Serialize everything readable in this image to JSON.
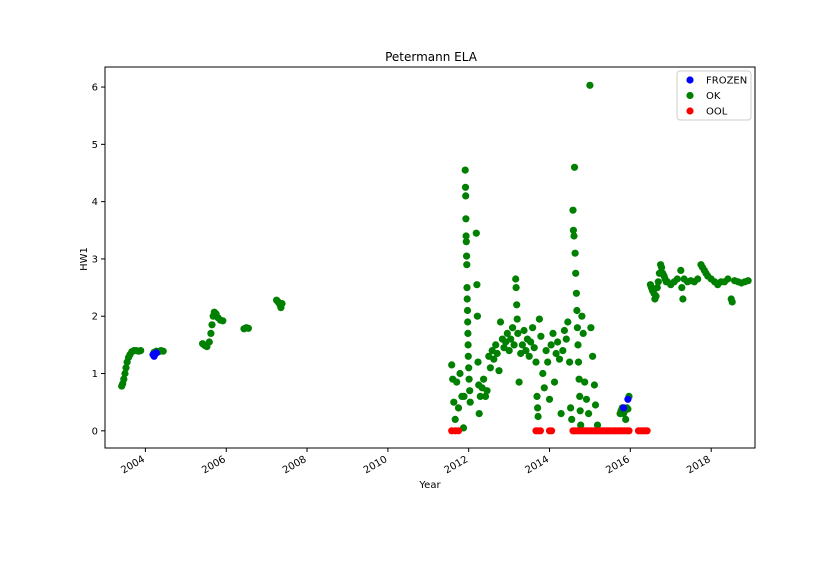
{
  "chart_data": {
    "type": "scatter",
    "title": "Petermann ELA",
    "xlabel": "Year",
    "ylabel": "HW1",
    "xlim": [
      "2003-01-01",
      "2019-02-01"
    ],
    "ylim": [
      -0.3,
      6.35
    ],
    "x_ticks": [
      "2004",
      "2006",
      "2008",
      "2010",
      "2012",
      "2014",
      "2016",
      "2018"
    ],
    "y_ticks": [
      "0",
      "1",
      "2",
      "3",
      "4",
      "5",
      "6"
    ],
    "grid": false,
    "legend_position": "top-right",
    "colors": {
      "FROZEN": "#0000ff",
      "OK": "#008000",
      "OOL": "#ff0000"
    },
    "series": [
      {
        "name": "OK",
        "color": "#008000",
        "points": [
          [
            "2003-06-01",
            0.78
          ],
          [
            "2003-06-10",
            0.82
          ],
          [
            "2003-06-20",
            0.9
          ],
          [
            "2003-07-01",
            1.0
          ],
          [
            "2003-07-10",
            1.1
          ],
          [
            "2003-07-20",
            1.2
          ],
          [
            "2003-08-01",
            1.28
          ],
          [
            "2003-08-15",
            1.33
          ],
          [
            "2003-09-01",
            1.38
          ],
          [
            "2003-09-20",
            1.4
          ],
          [
            "2003-10-10",
            1.4
          ],
          [
            "2003-11-01",
            1.39
          ],
          [
            "2003-11-20",
            1.4
          ],
          [
            "2004-03-20",
            1.37
          ],
          [
            "2004-04-10",
            1.39
          ],
          [
            "2004-05-01",
            1.38
          ],
          [
            "2004-05-20",
            1.4
          ],
          [
            "2004-06-10",
            1.39
          ],
          [
            "2005-06-01",
            1.52
          ],
          [
            "2005-06-20",
            1.49
          ],
          [
            "2005-07-10",
            1.47
          ],
          [
            "2005-08-01",
            1.55
          ],
          [
            "2005-08-15",
            1.7
          ],
          [
            "2005-08-25",
            1.85
          ],
          [
            "2005-09-05",
            2.0
          ],
          [
            "2005-09-15",
            2.07
          ],
          [
            "2005-10-01",
            2.04
          ],
          [
            "2005-10-20",
            1.97
          ],
          [
            "2005-11-10",
            1.93
          ],
          [
            "2005-12-01",
            1.92
          ],
          [
            "2006-06-10",
            1.78
          ],
          [
            "2006-07-01",
            1.8
          ],
          [
            "2006-07-20",
            1.79
          ],
          [
            "2007-04-01",
            2.28
          ],
          [
            "2007-04-15",
            2.25
          ],
          [
            "2007-05-01",
            2.2
          ],
          [
            "2007-05-10",
            2.15
          ],
          [
            "2007-05-20",
            2.22
          ],
          [
            "2011-08-01",
            1.15
          ],
          [
            "2011-08-10",
            0.9
          ],
          [
            "2011-08-20",
            0.5
          ],
          [
            "2011-09-01",
            0.2
          ],
          [
            "2011-09-15",
            0.85
          ],
          [
            "2011-10-01",
            0.4
          ],
          [
            "2011-10-15",
            1.0
          ],
          [
            "2011-11-01",
            0.6
          ],
          [
            "2011-11-15",
            0.05
          ],
          [
            "2011-11-20",
            0.6
          ],
          [
            "2011-12-01",
            4.55
          ],
          [
            "2011-12-03",
            4.25
          ],
          [
            "2011-12-05",
            4.1
          ],
          [
            "2011-12-07",
            3.7
          ],
          [
            "2011-12-09",
            3.4
          ],
          [
            "2011-12-11",
            3.3
          ],
          [
            "2011-12-13",
            3.05
          ],
          [
            "2011-12-15",
            2.9
          ],
          [
            "2011-12-17",
            2.5
          ],
          [
            "2011-12-19",
            2.3
          ],
          [
            "2011-12-21",
            2.1
          ],
          [
            "2011-12-23",
            1.9
          ],
          [
            "2011-12-25",
            1.7
          ],
          [
            "2011-12-27",
            1.5
          ],
          [
            "2011-12-29",
            1.3
          ],
          [
            "2012-01-01",
            1.1
          ],
          [
            "2012-01-05",
            0.9
          ],
          [
            "2012-01-10",
            0.7
          ],
          [
            "2012-01-15",
            0.5
          ],
          [
            "2012-03-10",
            3.45
          ],
          [
            "2012-03-15",
            2.55
          ],
          [
            "2012-03-20",
            2.0
          ],
          [
            "2012-03-25",
            1.2
          ],
          [
            "2012-04-01",
            0.8
          ],
          [
            "2012-04-05",
            0.3
          ],
          [
            "2012-04-15",
            0.6
          ],
          [
            "2012-05-01",
            0.75
          ],
          [
            "2012-05-15",
            0.9
          ],
          [
            "2012-06-01",
            0.6
          ],
          [
            "2012-06-15",
            0.7
          ],
          [
            "2012-07-01",
            1.3
          ],
          [
            "2012-07-15",
            1.1
          ],
          [
            "2012-08-01",
            1.4
          ],
          [
            "2012-08-15",
            1.25
          ],
          [
            "2012-09-01",
            1.5
          ],
          [
            "2012-09-15",
            1.35
          ],
          [
            "2012-10-01",
            1.05
          ],
          [
            "2012-10-15",
            1.9
          ],
          [
            "2012-11-01",
            1.6
          ],
          [
            "2012-11-15",
            1.45
          ],
          [
            "2012-12-01",
            1.55
          ],
          [
            "2012-12-15",
            1.7
          ],
          [
            "2013-01-01",
            1.4
          ],
          [
            "2013-01-15",
            1.6
          ],
          [
            "2013-02-01",
            1.8
          ],
          [
            "2013-02-15",
            1.5
          ],
          [
            "2013-03-01",
            2.65
          ],
          [
            "2013-03-05",
            2.5
          ],
          [
            "2013-03-10",
            2.2
          ],
          [
            "2013-03-15",
            1.95
          ],
          [
            "2013-03-20",
            1.7
          ],
          [
            "2013-04-01",
            0.85
          ],
          [
            "2013-04-15",
            1.35
          ],
          [
            "2013-05-01",
            1.5
          ],
          [
            "2013-05-15",
            1.75
          ],
          [
            "2013-06-01",
            1.4
          ],
          [
            "2013-06-15",
            1.6
          ],
          [
            "2013-07-01",
            1.3
          ],
          [
            "2013-07-15",
            1.55
          ],
          [
            "2013-08-01",
            1.8
          ],
          [
            "2013-08-15",
            1.45
          ],
          [
            "2013-09-01",
            1.2
          ],
          [
            "2013-09-10",
            0.6
          ],
          [
            "2013-09-15",
            0.4
          ],
          [
            "2013-09-20",
            0.25
          ],
          [
            "2013-10-01",
            1.95
          ],
          [
            "2013-10-15",
            1.65
          ],
          [
            "2013-11-01",
            1.0
          ],
          [
            "2013-11-15",
            0.75
          ],
          [
            "2013-12-01",
            1.4
          ],
          [
            "2013-12-15",
            1.2
          ],
          [
            "2014-01-01",
            0.55
          ],
          [
            "2014-01-15",
            1.5
          ],
          [
            "2014-02-01",
            1.7
          ],
          [
            "2014-02-15",
            0.85
          ],
          [
            "2014-03-01",
            1.35
          ],
          [
            "2014-03-15",
            1.55
          ],
          [
            "2014-04-01",
            1.25
          ],
          [
            "2014-04-15",
            0.3
          ],
          [
            "2014-05-01",
            1.4
          ],
          [
            "2014-05-15",
            1.75
          ],
          [
            "2014-06-01",
            1.6
          ],
          [
            "2014-06-15",
            1.9
          ],
          [
            "2014-07-01",
            1.2
          ],
          [
            "2014-07-10",
            0.4
          ],
          [
            "2014-07-20",
            0.2
          ],
          [
            "2014-08-01",
            3.85
          ],
          [
            "2014-08-05",
            3.5
          ],
          [
            "2014-08-10",
            3.4
          ],
          [
            "2014-08-15",
            4.6
          ],
          [
            "2014-08-20",
            3.1
          ],
          [
            "2014-08-25",
            2.75
          ],
          [
            "2014-09-01",
            2.4
          ],
          [
            "2014-09-05",
            2.1
          ],
          [
            "2014-09-10",
            1.8
          ],
          [
            "2014-09-15",
            1.5
          ],
          [
            "2014-09-20",
            1.2
          ],
          [
            "2014-09-25",
            0.9
          ],
          [
            "2014-10-01",
            0.6
          ],
          [
            "2014-10-05",
            0.35
          ],
          [
            "2014-10-10",
            0.1
          ],
          [
            "2014-10-20",
            2.0
          ],
          [
            "2014-11-01",
            1.7
          ],
          [
            "2014-11-15",
            0.85
          ],
          [
            "2014-12-01",
            0.55
          ],
          [
            "2014-12-20",
            0.3
          ],
          [
            "2015-01-01",
            6.03
          ],
          [
            "2015-01-10",
            1.8
          ],
          [
            "2015-01-25",
            1.3
          ],
          [
            "2015-02-10",
            0.8
          ],
          [
            "2015-02-20",
            0.45
          ],
          [
            "2015-03-10",
            0.1
          ],
          [
            "2015-10-01",
            0.3
          ],
          [
            "2015-10-10",
            0.35
          ],
          [
            "2015-10-20",
            0.4
          ],
          [
            "2015-11-01",
            0.3
          ],
          [
            "2015-11-10",
            0.35
          ],
          [
            "2015-11-20",
            0.2
          ],
          [
            "2015-12-01",
            0.4
          ],
          [
            "2015-12-10",
            0.38
          ],
          [
            "2015-12-20",
            0.6
          ],
          [
            "2016-07-01",
            2.55
          ],
          [
            "2016-07-10",
            2.5
          ],
          [
            "2016-07-20",
            2.45
          ],
          [
            "2016-08-01",
            2.4
          ],
          [
            "2016-08-10",
            2.3
          ],
          [
            "2016-08-20",
            2.35
          ],
          [
            "2016-09-01",
            2.5
          ],
          [
            "2016-09-10",
            2.6
          ],
          [
            "2016-09-20",
            2.75
          ],
          [
            "2016-10-01",
            2.9
          ],
          [
            "2016-10-10",
            2.85
          ],
          [
            "2016-10-20",
            2.75
          ],
          [
            "2016-11-01",
            2.7
          ],
          [
            "2016-11-10",
            2.65
          ],
          [
            "2016-11-20",
            2.6
          ],
          [
            "2016-12-01",
            2.6
          ],
          [
            "2017-01-01",
            2.55
          ],
          [
            "2017-02-01",
            2.6
          ],
          [
            "2017-03-01",
            2.65
          ],
          [
            "2017-04-01",
            2.8
          ],
          [
            "2017-04-10",
            2.5
          ],
          [
            "2017-04-20",
            2.3
          ],
          [
            "2017-05-01",
            2.65
          ],
          [
            "2017-06-01",
            2.6
          ],
          [
            "2017-07-01",
            2.62
          ],
          [
            "2017-08-01",
            2.6
          ],
          [
            "2017-09-01",
            2.65
          ],
          [
            "2017-10-01",
            2.9
          ],
          [
            "2017-10-15",
            2.85
          ],
          [
            "2017-11-01",
            2.8
          ],
          [
            "2017-11-15",
            2.75
          ],
          [
            "2017-12-01",
            2.7
          ],
          [
            "2018-01-01",
            2.65
          ],
          [
            "2018-02-01",
            2.6
          ],
          [
            "2018-03-01",
            2.55
          ],
          [
            "2018-04-01",
            2.6
          ],
          [
            "2018-05-01",
            2.6
          ],
          [
            "2018-06-01",
            2.65
          ],
          [
            "2018-07-01",
            2.3
          ],
          [
            "2018-07-10",
            2.25
          ],
          [
            "2018-08-01",
            2.62
          ],
          [
            "2018-09-01",
            2.6
          ],
          [
            "2018-10-01",
            2.58
          ],
          [
            "2018-11-01",
            2.6
          ],
          [
            "2018-12-01",
            2.62
          ]
        ]
      },
      {
        "name": "OOL",
        "color": "#ff0000",
        "points": [
          [
            "2011-08-01",
            0.0
          ],
          [
            "2011-09-01",
            0.0
          ],
          [
            "2011-10-01",
            0.0
          ],
          [
            "2013-09-01",
            0.0
          ],
          [
            "2013-09-20",
            0.0
          ],
          [
            "2013-10-10",
            0.0
          ],
          [
            "2014-01-01",
            0.0
          ],
          [
            "2014-01-20",
            0.0
          ],
          [
            "2014-08-01",
            0.0
          ],
          [
            "2014-08-20",
            0.0
          ],
          [
            "2014-09-10",
            0.0
          ],
          [
            "2014-10-01",
            0.0
          ],
          [
            "2014-10-20",
            0.0
          ],
          [
            "2014-11-10",
            0.0
          ],
          [
            "2014-12-01",
            0.0
          ],
          [
            "2014-12-20",
            0.0
          ],
          [
            "2015-01-10",
            0.0
          ],
          [
            "2015-02-01",
            0.0
          ],
          [
            "2015-02-20",
            0.0
          ],
          [
            "2015-03-10",
            0.0
          ],
          [
            "2015-04-01",
            0.0
          ],
          [
            "2015-04-20",
            0.0
          ],
          [
            "2015-05-10",
            0.0
          ],
          [
            "2015-06-01",
            0.0
          ],
          [
            "2015-06-20",
            0.0
          ],
          [
            "2015-07-10",
            0.0
          ],
          [
            "2015-08-01",
            0.0
          ],
          [
            "2015-08-20",
            0.0
          ],
          [
            "2015-09-10",
            0.0
          ],
          [
            "2015-10-01",
            0.0
          ],
          [
            "2015-10-20",
            0.0
          ],
          [
            "2015-11-10",
            0.0
          ],
          [
            "2015-12-01",
            0.0
          ],
          [
            "2015-12-20",
            0.0
          ],
          [
            "2016-03-15",
            0.0
          ],
          [
            "2016-04-05",
            0.0
          ],
          [
            "2016-04-25",
            0.0
          ],
          [
            "2016-05-15",
            0.0
          ],
          [
            "2016-06-01",
            0.0
          ]
        ]
      },
      {
        "name": "FROZEN",
        "color": "#0000ff",
        "points": [
          [
            "2004-03-10",
            1.33
          ],
          [
            "2004-03-20",
            1.3
          ],
          [
            "2004-04-01",
            1.35
          ],
          [
            "2004-04-10",
            1.36
          ],
          [
            "2015-11-01",
            0.4
          ],
          [
            "2015-12-10",
            0.55
          ]
        ]
      }
    ]
  }
}
